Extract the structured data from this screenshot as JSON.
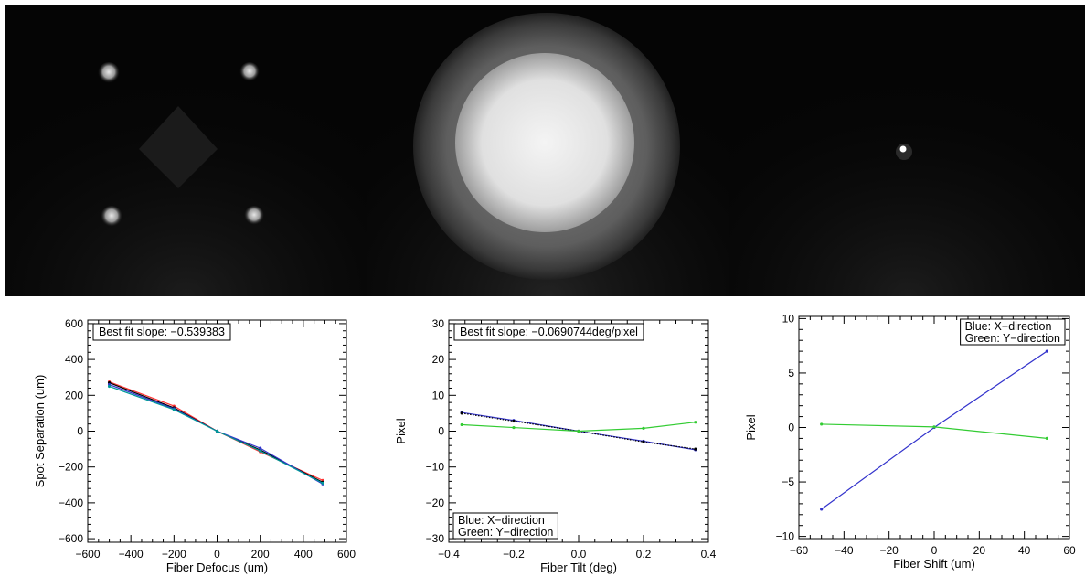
{
  "images": [
    {
      "description_label": "",
      "kind": "four-spot"
    },
    {
      "description_label": "",
      "kind": "illuminated-disk"
    },
    {
      "description_label": "",
      "kind": "single-spot"
    }
  ],
  "colors": {
    "axis": "#000000",
    "background": "#ffffff",
    "blue": "#3333cc",
    "green": "#33cc33",
    "red": "#ff3333",
    "teal": "#009999",
    "black": "#000000"
  },
  "chart_data": [
    {
      "type": "line",
      "xlabel": "Fiber Defocus (um)",
      "ylabel": "Spot Separation (um)",
      "xlim": [
        -600,
        600
      ],
      "ylim": [
        -620,
        620
      ],
      "xticks": [
        -600,
        -400,
        -200,
        0,
        200,
        400,
        600
      ],
      "yticks": [
        -600,
        -400,
        -200,
        0,
        200,
        400,
        600
      ],
      "xticklabels": [
        "−600",
        "−400",
        "−200",
        "0",
        "200",
        "400",
        "600"
      ],
      "yticklabels": [
        "−600",
        "−400",
        "−200",
        "0",
        "200",
        "400",
        "600"
      ],
      "annotation": "Best fit slope: −0.539383",
      "annotation_position": "top-left",
      "series": [
        {
          "color": "#ff3333",
          "x": [
            -500,
            -200,
            0,
            200,
            490
          ],
          "y": [
            275,
            140,
            0,
            -115,
            -275
          ]
        },
        {
          "color": "#000000",
          "x": [
            -500,
            -200,
            0,
            200,
            490
          ],
          "y": [
            270,
            130,
            0,
            -105,
            -285
          ]
        },
        {
          "color": "#3333cc",
          "x": [
            -500,
            -200,
            0,
            200,
            490
          ],
          "y": [
            260,
            125,
            0,
            -95,
            -295
          ]
        },
        {
          "color": "#009999",
          "x": [
            -500,
            -200,
            0,
            200,
            490
          ],
          "y": [
            250,
            120,
            0,
            -110,
            -290
          ]
        }
      ]
    },
    {
      "type": "line",
      "xlabel": "Fiber Tilt (deg)",
      "ylabel": "Pixel",
      "xlim": [
        -0.4,
        0.4
      ],
      "ylim": [
        -31,
        31
      ],
      "xticks": [
        -0.4,
        -0.2,
        0.0,
        0.2,
        0.4
      ],
      "yticks": [
        -30,
        -20,
        -10,
        0,
        10,
        20,
        30
      ],
      "xticklabels": [
        "−0.4",
        "−0.2",
        "0.0",
        "0.2",
        "0.4"
      ],
      "yticklabels": [
        "−30",
        "−20",
        "−10",
        "0",
        "10",
        "20",
        "30"
      ],
      "annotation": "Best fit slope: −0.0690744deg/pixel",
      "annotation_position": "top-left",
      "legend": [
        "Blue: X−direction",
        "Green: Y−direction"
      ],
      "legend_position": "bottom-left",
      "series": [
        {
          "color": "#3333cc",
          "x": [
            -0.36,
            -0.2,
            0.0,
            0.2,
            0.36
          ],
          "y": [
            5.2,
            3.0,
            0.0,
            -2.8,
            -5.2
          ]
        },
        {
          "color": "#000000",
          "dashed": true,
          "x": [
            -0.36,
            -0.2,
            0.0,
            0.2,
            0.36
          ],
          "y": [
            5.0,
            2.8,
            0.0,
            -3.0,
            -5.0
          ]
        },
        {
          "color": "#33cc33",
          "x": [
            -0.36,
            -0.2,
            0.0,
            0.2,
            0.36
          ],
          "y": [
            1.8,
            1.0,
            0.0,
            0.8,
            2.5
          ]
        }
      ]
    },
    {
      "type": "line",
      "xlabel": "Fiber Shift (um)",
      "ylabel": "Pixel",
      "xlim": [
        -60,
        60
      ],
      "ylim": [
        -10.2,
        10.2
      ],
      "xticks": [
        -60,
        -40,
        -20,
        0,
        20,
        40,
        60
      ],
      "yticks": [
        -10,
        -5,
        0,
        5,
        10
      ],
      "xticklabels": [
        "−60",
        "−40",
        "−20",
        "0",
        "20",
        "40",
        "60"
      ],
      "yticklabels": [
        "−10",
        "−5",
        "0",
        "5",
        "10"
      ],
      "legend": [
        "Blue: X−direction",
        "Green: Y−direction"
      ],
      "legend_position": "top-right",
      "series": [
        {
          "color": "#3333cc",
          "x": [
            -50,
            0,
            50
          ],
          "y": [
            -7.5,
            0,
            7.0
          ]
        },
        {
          "color": "#33cc33",
          "x": [
            -50,
            0,
            50
          ],
          "y": [
            0.3,
            0.05,
            -1.0
          ]
        }
      ]
    }
  ]
}
